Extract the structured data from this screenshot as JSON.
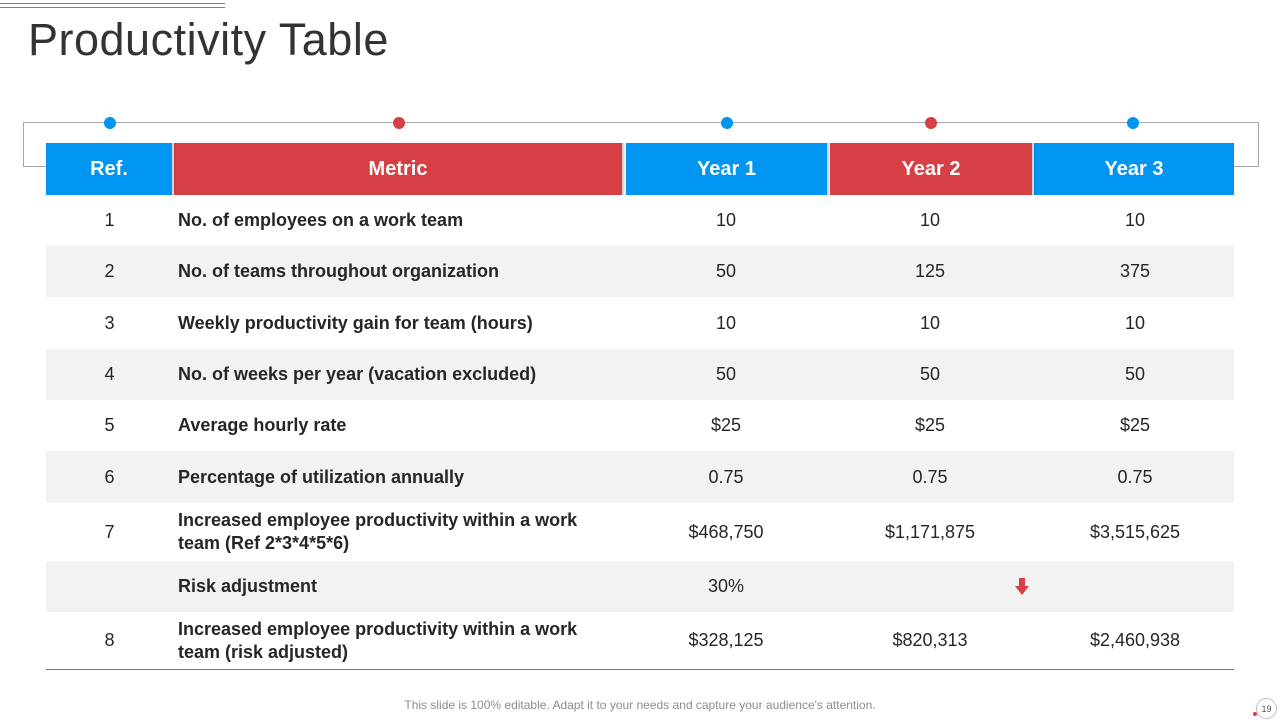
{
  "title": "Productivity Table",
  "colors": {
    "blue": "#0095f0",
    "red": "#d64045",
    "row_shade": "#f2f2f2"
  },
  "table": {
    "headers": [
      "Ref.",
      "Metric",
      "Year 1",
      "Year 2",
      "Year 3"
    ],
    "rows": [
      {
        "ref": "1",
        "metric": "No. of employees on a work team",
        "y1": "10",
        "y2": "10",
        "y3": "10"
      },
      {
        "ref": "2",
        "metric": "No. of teams throughout organization",
        "y1": "50",
        "y2": "125",
        "y3": "375"
      },
      {
        "ref": "3",
        "metric": "Weekly productivity gain for team (hours)",
        "y1": "10",
        "y2": "10",
        "y3": "10"
      },
      {
        "ref": "4",
        "metric": "No. of weeks per year (vacation excluded)",
        "y1": "50",
        "y2": "50",
        "y3": "50"
      },
      {
        "ref": "5",
        "metric": "Average hourly rate",
        "y1": "$25",
        "y2": "$25",
        "y3": "$25"
      },
      {
        "ref": "6",
        "metric": "Percentage of utilization annually",
        "y1": "0.75",
        "y2": "0.75",
        "y3": "0.75"
      },
      {
        "ref": "7",
        "metric": "Increased employee productivity within a work team (Ref 2*3*4*5*6)",
        "y1": "$468,750",
        "y2": "$1,171,875",
        "y3": "$3,515,625"
      },
      {
        "ref": "",
        "metric": "Risk adjustment",
        "y1": "30%",
        "y2": "",
        "y3": ""
      },
      {
        "ref": "8",
        "metric": "Increased employee productivity within a work team (risk adjusted)",
        "y1": "$328,125",
        "y2": "$820,313",
        "y3": "$2,460,938"
      }
    ],
    "risk_icon": "arrow-down-icon"
  },
  "footer": "This slide is 100% editable. Adapt it to your needs and capture your audience's attention.",
  "page_number": "19"
}
